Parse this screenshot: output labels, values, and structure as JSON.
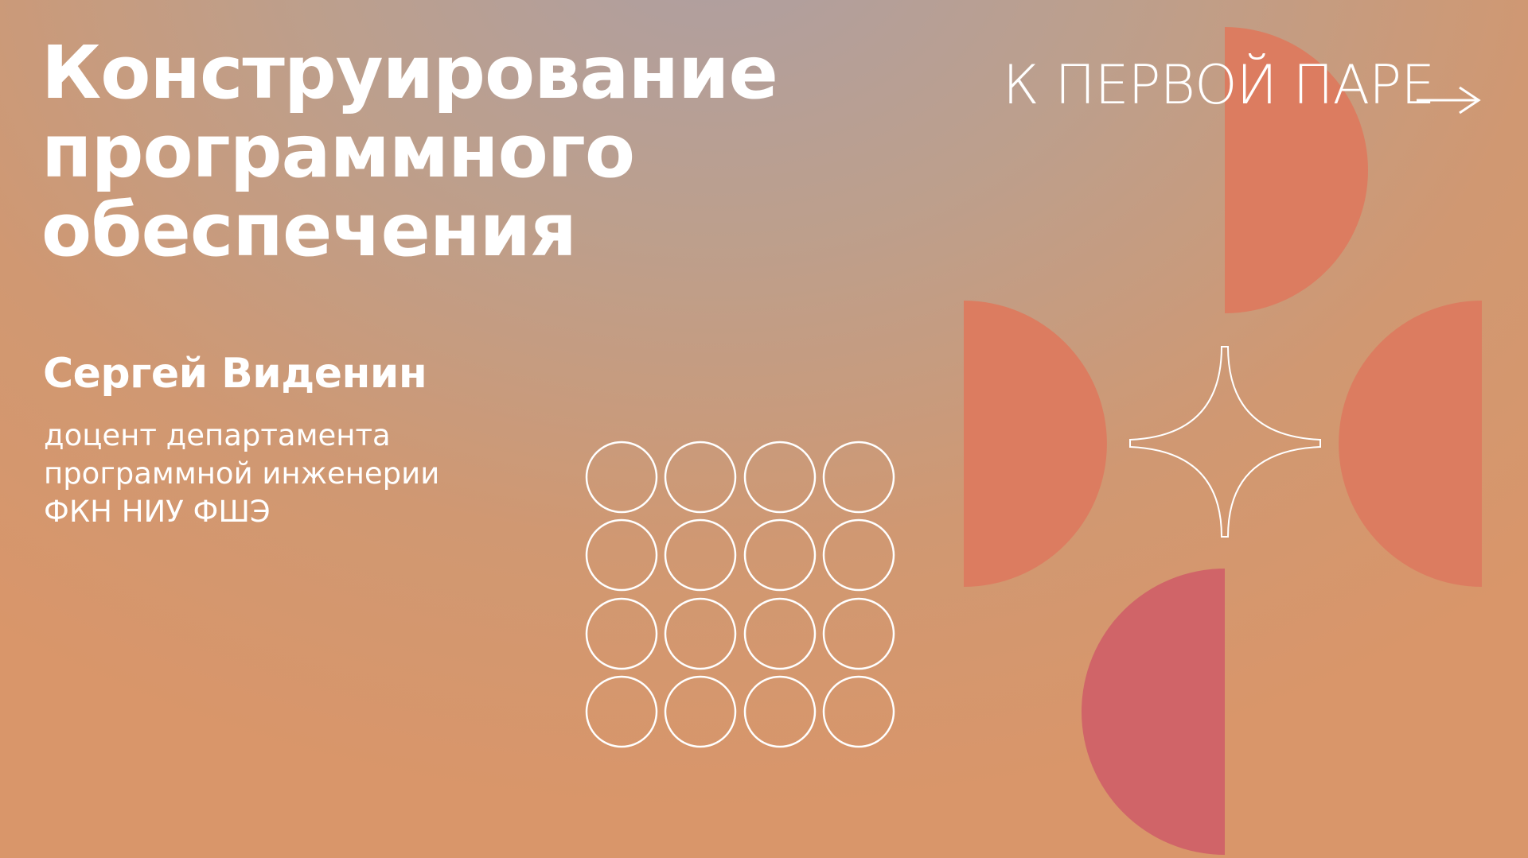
{
  "course": {
    "title_lines": [
      "Конструирование",
      "программного",
      "обеспечения"
    ]
  },
  "lecturer": {
    "name": "Сергей Виденин",
    "position_lines": [
      "доцент департамента",
      "программной инженерии",
      "ФКН НИУ ФШЭ"
    ]
  },
  "navigation": {
    "first_lesson_link": "К ПЕРВОЙ ПАРЕ",
    "arrow_icon": "arrow-right-icon"
  },
  "colors": {
    "half_disc": "#dc7c60",
    "half_disc_bottom": "#d06468",
    "outline": "#ffffff"
  }
}
